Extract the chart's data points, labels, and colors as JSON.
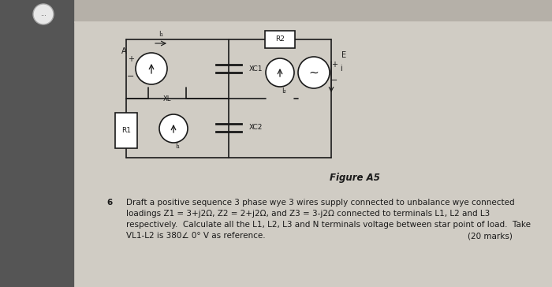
{
  "bg_outer": "#1c1c1c",
  "bg_sidebar": "#555555",
  "bg_topbar": "#b5b0a8",
  "bg_content": "#d0ccc4",
  "lc": "#1a1a1a",
  "white": "#ffffff",
  "circuit_title": "Figure A5",
  "q_num": "6",
  "q_line1": "Draft a positive sequence 3 phase wye 3 wires supply connected to unbalance wye connected",
  "q_line2": "loadings Z1 = 3+j2Ω, Z2 = 2+j2Ω, and Z3 = 3-j2Ω connected to terminals L1, L2 and L3",
  "q_line3": "respectively.  Calculate all the L1, L2, L3 and N terminals voltage between star point of load.  Take",
  "q_line4": "VL1-L2 is 380∠ 0° V as reference.",
  "q_marks": "(20 marks)"
}
